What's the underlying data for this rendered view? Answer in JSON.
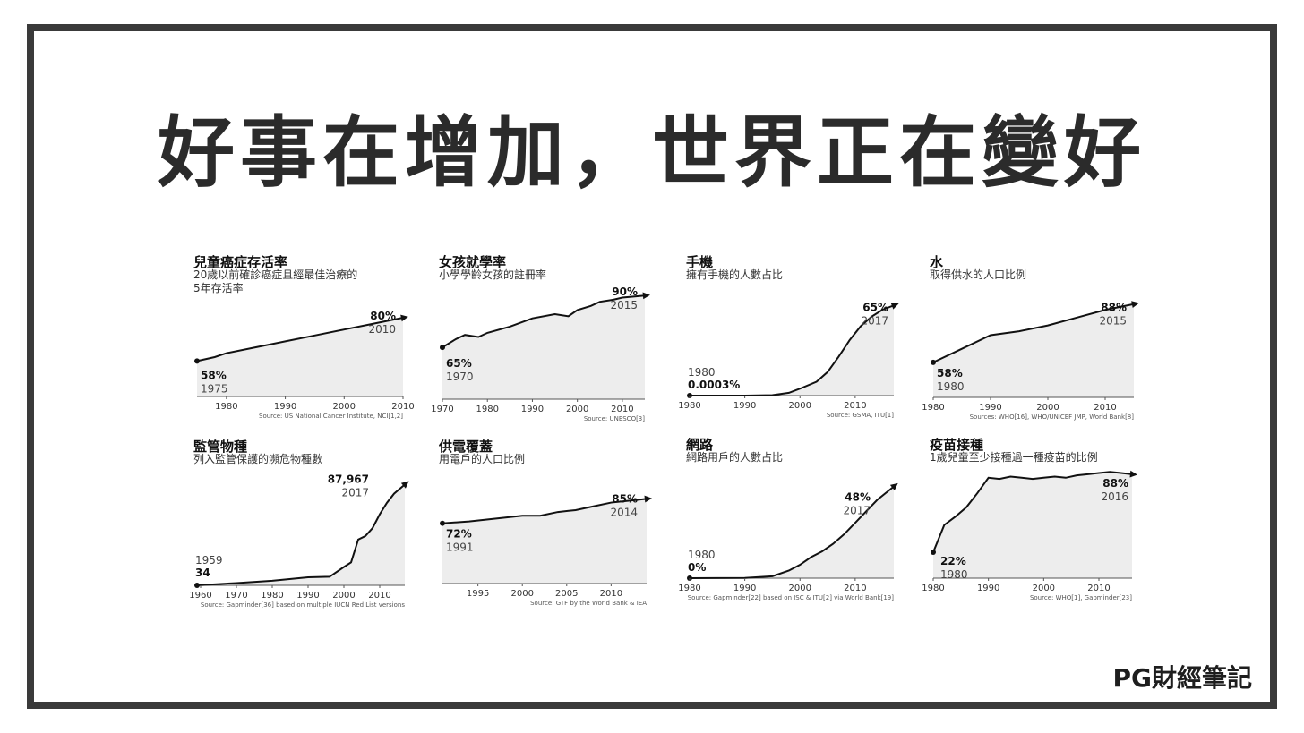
{
  "title": "好事在增加，世界正在變好",
  "brand": "PG財經筆記",
  "chart_data": [
    {
      "id": "p1",
      "type": "area",
      "title": "兒童癌症存活率",
      "subtitle": "20歲以前確診癌症且經最佳治療的\n5年存活率",
      "xlim": [
        1975,
        2010
      ],
      "ylim": [
        40,
        95
      ],
      "x": [
        1975,
        1978,
        1980,
        1985,
        1990,
        1995,
        2000,
        2005,
        2010
      ],
      "y": [
        58,
        60,
        62,
        65,
        68,
        71,
        74,
        77,
        80
      ],
      "ticks": [
        "1980",
        "1990",
        "2000",
        "2010"
      ],
      "tick_values": [
        1980,
        1990,
        2000,
        2010
      ],
      "start_label": {
        "value": "58%",
        "year": "1975"
      },
      "end_label": {
        "value": "80%",
        "year": "2010"
      },
      "source": "Source: US National Cancer Institute, NCI[1,2]"
    },
    {
      "id": "p2",
      "type": "area",
      "title": "女孩就學率",
      "subtitle": "小學學齡女孩的註冊率",
      "xlim": [
        1970,
        2015
      ],
      "ylim": [
        40,
        97
      ],
      "x": [
        1970,
        1973,
        1975,
        1978,
        1980,
        1985,
        1990,
        1995,
        1998,
        2000,
        2003,
        2005,
        2008,
        2010,
        2015
      ],
      "y": [
        65,
        69,
        71,
        70,
        72,
        75,
        79,
        81,
        80,
        83,
        85,
        87,
        88,
        89,
        90
      ],
      "ticks": [
        "1970",
        "1980",
        "1990",
        "2000",
        "2010"
      ],
      "tick_values": [
        1970,
        1980,
        1990,
        2000,
        2010
      ],
      "start_label": {
        "value": "65%",
        "year": "1970"
      },
      "end_label": {
        "value": "90%",
        "year": "2015"
      },
      "source": "Source: UNESCO[3]"
    },
    {
      "id": "p3",
      "type": "area",
      "title": "手機",
      "subtitle": "擁有手機的人數占比",
      "xlim": [
        1980,
        2017
      ],
      "ylim": [
        0,
        80
      ],
      "x": [
        1980,
        1985,
        1990,
        1995,
        1998,
        2000,
        2003,
        2005,
        2007,
        2009,
        2011,
        2013,
        2015,
        2017
      ],
      "y": [
        0.0003,
        0.001,
        0.02,
        0.3,
        2,
        5,
        10,
        17,
        28,
        40,
        50,
        57,
        62,
        65
      ],
      "ticks": [
        "1980",
        "1990",
        "2000",
        "2010"
      ],
      "tick_values": [
        1980,
        1990,
        2000,
        2010
      ],
      "start_label": {
        "value": "0.0003%",
        "year": "1980"
      },
      "end_label": {
        "value": "65%",
        "year": "2017"
      },
      "source": "Source: GSMA, ITU[1]"
    },
    {
      "id": "p4",
      "type": "area",
      "title": "水",
      "subtitle": "取得供水的人口比例",
      "xlim": [
        1980,
        2015
      ],
      "ylim": [
        40,
        98
      ],
      "x": [
        1980,
        1985,
        1990,
        1995,
        2000,
        2005,
        2010,
        2015
      ],
      "y": [
        58,
        65,
        72,
        74,
        77,
        81,
        85,
        88
      ],
      "ticks": [
        "1980",
        "1990",
        "2000",
        "2010"
      ],
      "tick_values": [
        1980,
        1990,
        2000,
        2010
      ],
      "start_label": {
        "value": "58%",
        "year": "1980"
      },
      "end_label": {
        "value": "88%",
        "year": "2015"
      },
      "source": "Sources: WHO[16], WHO/UNICEF JMP, World Bank[8]"
    },
    {
      "id": "p5",
      "type": "area",
      "title": "監管物種",
      "subtitle": "列入監管保護的瀕危物種數",
      "xlim": [
        1959,
        2017
      ],
      "ylim": [
        0,
        100000
      ],
      "x": [
        1959,
        1970,
        1980,
        1990,
        1996,
        2000,
        2002,
        2004,
        2006,
        2008,
        2010,
        2012,
        2014,
        2017
      ],
      "y": [
        34,
        2000,
        4000,
        7000,
        7500,
        16000,
        20000,
        40000,
        43000,
        50000,
        62000,
        72000,
        80000,
        87967
      ],
      "ticks": [
        "1960",
        "1970",
        "1980",
        "1990",
        "2000",
        "2010"
      ],
      "tick_values": [
        1960,
        1970,
        1980,
        1990,
        2000,
        2010
      ],
      "start_label": {
        "value": "34",
        "year": "1959"
      },
      "end_label": {
        "value": "87,967",
        "year": "2017"
      },
      "source": "Source: Gapminder[36] based on multiple IUCN Red List versions"
    },
    {
      "id": "p6",
      "type": "area",
      "title": "供電覆蓋",
      "subtitle": "用電戶的人口比例",
      "xlim": [
        1991,
        2014
      ],
      "ylim": [
        40,
        98
      ],
      "x": [
        1991,
        1994,
        1996,
        1998,
        2000,
        2002,
        2004,
        2006,
        2008,
        2010,
        2012,
        2014
      ],
      "y": [
        72,
        73,
        74,
        75,
        76,
        76,
        78,
        79,
        81,
        83,
        84,
        85
      ],
      "ticks": [
        "1995",
        "2000",
        "2005",
        "2010"
      ],
      "tick_values": [
        1995,
        2000,
        2005,
        2010
      ],
      "start_label": {
        "value": "72%",
        "year": "1991"
      },
      "end_label": {
        "value": "85%",
        "year": "2014"
      },
      "source": "Source: GTF by the World Bank & IEA"
    },
    {
      "id": "p7",
      "type": "area",
      "title": "網路",
      "subtitle": "網路用戶的人數占比",
      "xlim": [
        1980,
        2017
      ],
      "ylim": [
        0,
        60
      ],
      "x": [
        1980,
        1990,
        1995,
        1998,
        2000,
        2002,
        2004,
        2006,
        2008,
        2010,
        2012,
        2014,
        2017
      ],
      "y": [
        0,
        0.1,
        1,
        4,
        7,
        11,
        14,
        18,
        23,
        29,
        35,
        41,
        48
      ],
      "ticks": [
        "1980",
        "1990",
        "2000",
        "2010"
      ],
      "tick_values": [
        1980,
        1990,
        2000,
        2010
      ],
      "start_label": {
        "value": "0%",
        "year": "1980"
      },
      "end_label": {
        "value": "48%",
        "year": "2017"
      },
      "source": "Source: Gapminder[22] based on ISC & ITU[2] via World Bank[19]"
    },
    {
      "id": "p8",
      "type": "area",
      "title": "疫苗接種",
      "subtitle": "1歲兒童至少接種過一種疫苗的比例",
      "xlim": [
        1980,
        2016
      ],
      "ylim": [
        0,
        100
      ],
      "x": [
        1980,
        1982,
        1984,
        1986,
        1988,
        1990,
        1992,
        1994,
        1996,
        1998,
        2000,
        2002,
        2004,
        2006,
        2008,
        2010,
        2012,
        2014,
        2016
      ],
      "y": [
        22,
        45,
        52,
        60,
        72,
        85,
        84,
        86,
        85,
        84,
        85,
        86,
        85,
        87,
        88,
        89,
        90,
        89,
        88
      ],
      "ticks": [
        "1980",
        "1990",
        "2000",
        "2010"
      ],
      "tick_values": [
        1980,
        1990,
        2000,
        2010
      ],
      "start_label": {
        "value": "22%",
        "year": "1980"
      },
      "end_label": {
        "value": "88%",
        "year": "2016"
      },
      "source": "Source: WHO[1], Gapminder[23]"
    }
  ]
}
